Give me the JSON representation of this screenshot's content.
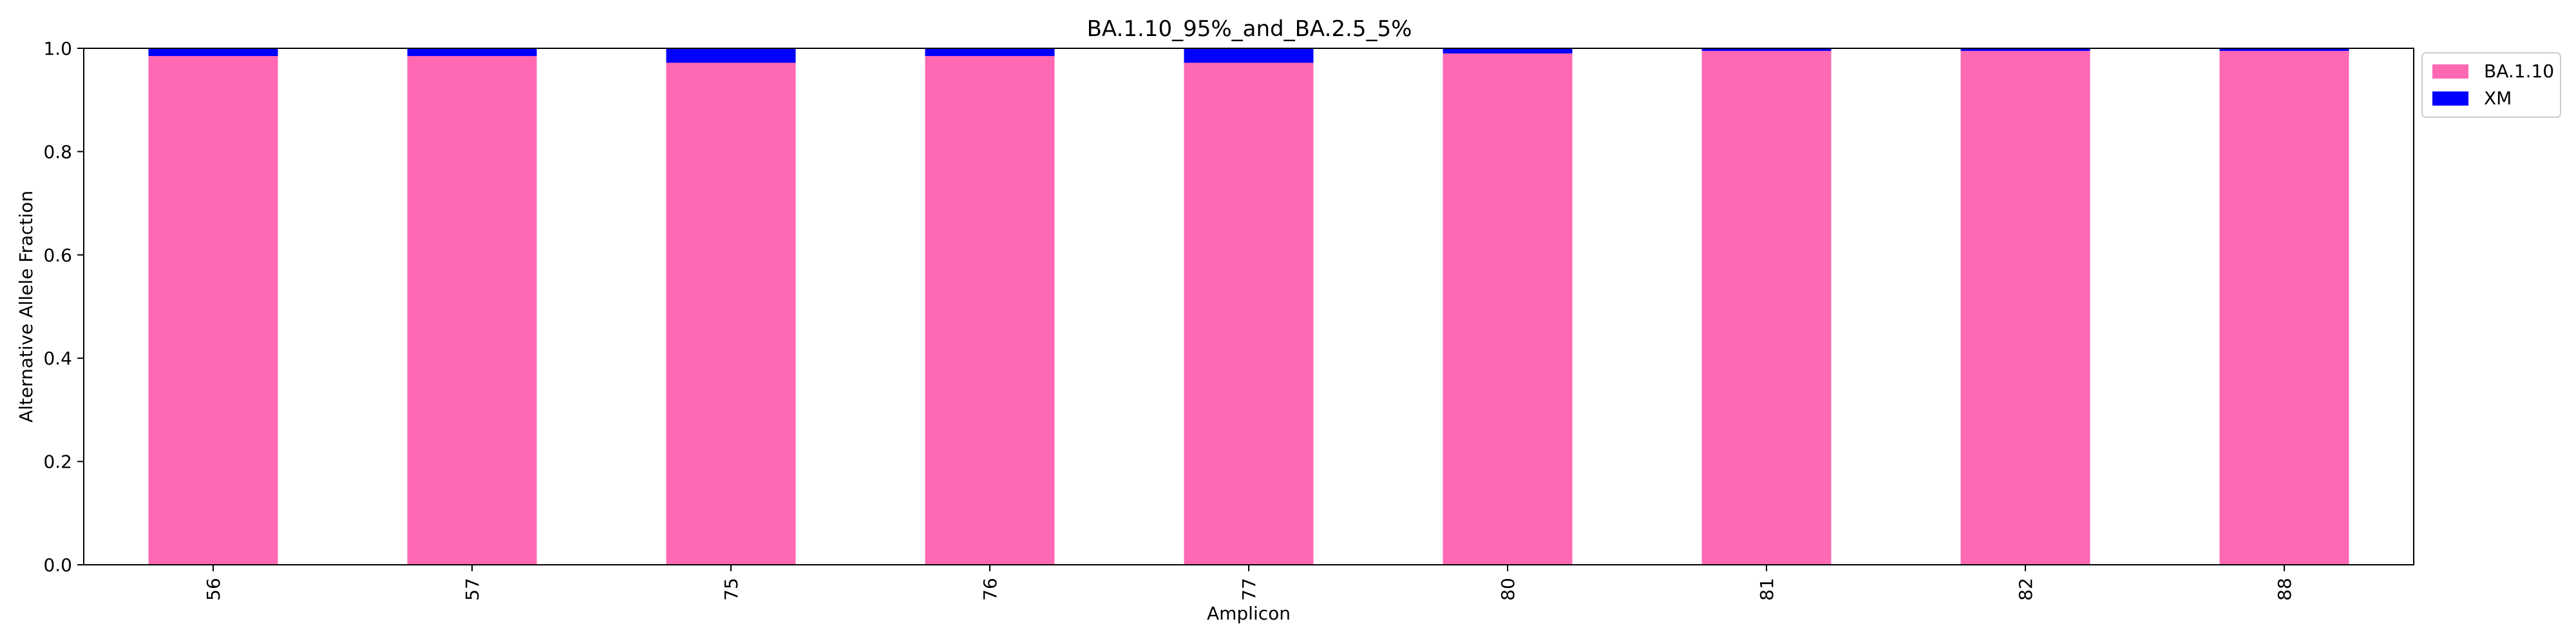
{
  "chart_data": {
    "type": "bar",
    "stacked": true,
    "title": "BA.1.10_95%_and_BA.2.5_5%",
    "xlabel": "Amplicon",
    "ylabel": "Alternative Allele Fraction",
    "ylim": [
      0,
      1.0
    ],
    "yticks": [
      "0.0",
      "0.2",
      "0.4",
      "0.6",
      "0.8",
      "1.0"
    ],
    "categories": [
      "56",
      "57",
      "75",
      "76",
      "77",
      "80",
      "81",
      "82",
      "88"
    ],
    "series": [
      {
        "name": "BA.1.10",
        "color": "#ff69b4",
        "values": [
          0.985,
          0.985,
          0.972,
          0.985,
          0.972,
          0.99,
          0.995,
          0.995,
          0.995
        ]
      },
      {
        "name": "XM",
        "color": "#0000ff",
        "values": [
          0.015,
          0.015,
          0.028,
          0.015,
          0.028,
          0.01,
          0.005,
          0.005,
          0.005
        ]
      }
    ],
    "legend_position": "outside-top-right",
    "grid": false
  }
}
